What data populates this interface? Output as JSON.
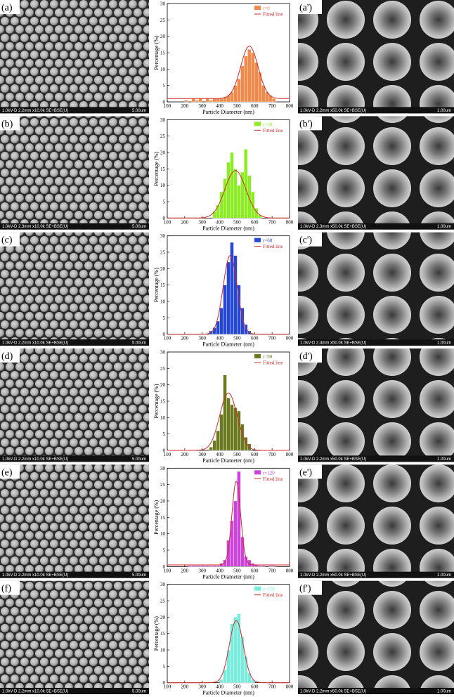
{
  "panels": [
    {
      "label": "(a)",
      "info": "1.0kV-D 2.2mm x10.0k SE+BSE(U)",
      "scale": "5.00um"
    },
    {
      "label": "(b)",
      "info": "1.0kV-D 2.3mm x10.0k SE+BSE(U)",
      "scale": "5.00um"
    },
    {
      "label": "(c)",
      "info": "1.0kV-D 2.2mm x10.0k SE+BSE(U)",
      "scale": "5.00um"
    },
    {
      "label": "(d)",
      "info": "1.0kV-D 2.2mm x10.0k SE+BSE(U)",
      "scale": "5.00um"
    },
    {
      "label": "(e)",
      "info": "1.0kV-D 2.2mm x10.0k SE+BSE(U)",
      "scale": "5.00um"
    },
    {
      "label": "(f)",
      "info": "1.0kV-D 2.2mm x10.0k SE+BSE(U)",
      "scale": "5.00um"
    }
  ],
  "zoom_panels": [
    {
      "label": "(a')",
      "info": "1.0kV-D 2.2mm x50.0k SE+BSE(U)",
      "scale": "1.00um"
    },
    {
      "label": "(b')",
      "info": "1.0kV-D 2.3mm x50.0k SE+BSE(U)",
      "scale": "1.00um"
    },
    {
      "label": "(c')",
      "info": "1.0kV-D 2.4mm x50.0k SE+BSE(U)",
      "scale": "1.00um"
    },
    {
      "label": "(d')",
      "info": "1.0kV-D 2.2mm x50.0k SE+BSE(U)",
      "scale": "1.00um"
    },
    {
      "label": "(e')",
      "info": "1.0kV-D 2.2mm x50.0k SE+BSE(U)",
      "scale": "1.00um"
    },
    {
      "label": "(f')",
      "info": "1.0kV-D 2.2mm x50.0k SE+BSE(U)",
      "scale": "1.00um"
    }
  ],
  "chart_data": [
    {
      "type": "histogram",
      "xlabel": "Particle Diameter (nm)",
      "ylabel": "Percentage (%)",
      "xlim": [
        100,
        800
      ],
      "xticks": [
        100,
        200,
        300,
        400,
        500,
        600,
        700,
        800
      ],
      "ylim": [
        0,
        30
      ],
      "yticks": [
        0,
        5,
        10,
        15,
        20,
        25,
        30
      ],
      "bins": [
        200,
        220,
        240,
        260,
        280,
        300,
        320,
        340,
        360,
        380,
        400,
        420,
        440,
        460,
        480,
        500,
        520,
        540,
        560,
        580,
        600,
        620,
        640,
        660,
        680,
        700,
        720
      ],
      "series": [
        {
          "name": "r=0",
          "color": "#f08a4b",
          "values": [
            0.5,
            0,
            1,
            0.5,
            1,
            0,
            1,
            0.5,
            1,
            1,
            1,
            1.5,
            2,
            3,
            5,
            7,
            11,
            14,
            16,
            15,
            12,
            9,
            5,
            3,
            2,
            1
          ]
        }
      ],
      "fit": {
        "name": "Fitted line",
        "color": "#d42a2a",
        "center": 570,
        "sigma": 50,
        "peak": 16,
        "offset": 1
      }
    },
    {
      "type": "histogram",
      "xlabel": "Particle Diameter (nm)",
      "ylabel": "Percentage (%)",
      "xlim": [
        100,
        800
      ],
      "xticks": [
        100,
        200,
        300,
        400,
        500,
        600,
        700,
        800
      ],
      "ylim": [
        0,
        30
      ],
      "yticks": [
        0,
        5,
        10,
        15,
        20,
        25,
        30
      ],
      "bins": [
        360,
        380,
        400,
        420,
        440,
        460,
        480,
        500,
        520,
        540,
        560,
        580,
        600,
        620,
        640
      ],
      "series": [
        {
          "name": "r=30",
          "color": "#8aee22",
          "values": [
            2,
            4,
            8,
            12,
            17,
            20,
            15,
            10,
            14,
            21,
            13,
            8,
            3,
            1
          ]
        }
      ],
      "fit": {
        "name": "Fitted line",
        "color": "#d42a2a",
        "center": 490,
        "sigma": 60,
        "peak": 14.5,
        "offset": 0
      }
    },
    {
      "type": "histogram",
      "xlabel": "Particle Diameter (nm)",
      "ylabel": "Percentage (%)",
      "xlim": [
        100,
        800
      ],
      "xticks": [
        100,
        200,
        300,
        400,
        500,
        600,
        700,
        800
      ],
      "ylim": [
        0,
        30
      ],
      "yticks": [
        0,
        5,
        10,
        15,
        20,
        25,
        30
      ],
      "bins": [
        340,
        360,
        380,
        400,
        420,
        440,
        460,
        480,
        500,
        520,
        540,
        560,
        580
      ],
      "series": [
        {
          "name": "r=60",
          "color": "#2447d8",
          "values": [
            1,
            2,
            4,
            8,
            15,
            22,
            28,
            24,
            15,
            8,
            3,
            1
          ]
        }
      ],
      "fit": {
        "name": "Fitted line",
        "color": "#d42a2a",
        "center": 460,
        "sigma": 40,
        "peak": 24,
        "offset": 0
      }
    },
    {
      "type": "histogram",
      "xlabel": "Particle Diameter (nm)",
      "ylabel": "Percentage (%)",
      "xlim": [
        100,
        800
      ],
      "xticks": [
        100,
        200,
        300,
        400,
        500,
        600,
        700,
        800
      ],
      "ylim": [
        0,
        30
      ],
      "yticks": [
        0,
        5,
        10,
        15,
        20,
        25,
        30
      ],
      "bins": [
        340,
        360,
        380,
        400,
        420,
        440,
        460,
        480,
        500,
        520,
        540,
        560,
        580
      ],
      "series": [
        {
          "name": "r=90",
          "color": "#6b7a1f",
          "values": [
            1,
            3,
            6,
            11,
            23,
            16,
            14,
            13,
            12,
            8,
            4,
            2
          ]
        }
      ],
      "fit": {
        "name": "Fitted line",
        "color": "#d42a2a",
        "center": 450,
        "sigma": 50,
        "peak": 17.5,
        "offset": 0
      }
    },
    {
      "type": "histogram",
      "xlabel": "Particle Diameter (nm)",
      "ylabel": "Percentage (%)",
      "xlim": [
        100,
        800
      ],
      "xticks": [
        100,
        200,
        300,
        400,
        500,
        600,
        700,
        800
      ],
      "ylim": [
        0,
        30
      ],
      "yticks": [
        0,
        5,
        10,
        15,
        20,
        25,
        30
      ],
      "bins": [
        220,
        240,
        260,
        280,
        300,
        320,
        340,
        360,
        380,
        400,
        420,
        440,
        460,
        480,
        500,
        520,
        540,
        560,
        580,
        600,
        620,
        640,
        660,
        680,
        700,
        720
      ],
      "series": [
        {
          "name": "r=120",
          "color": "#cc44dd",
          "values": [
            0.3,
            0.3,
            0.3,
            0.3,
            0.3,
            0.3,
            0.3,
            0.3,
            0.3,
            1,
            2,
            8,
            14,
            20,
            29,
            9,
            3,
            2,
            1,
            0.5,
            0.3,
            0.3,
            0,
            0.3,
            0.3
          ]
        }
      ],
      "fit": {
        "name": "Fitted line",
        "color": "#d42a2a",
        "center": 495,
        "sigma": 25,
        "peak": 25.5,
        "offset": 0.5
      }
    },
    {
      "type": "histogram",
      "xlabel": "Particle Diameter (nm)",
      "ylabel": "Percentage (%)",
      "xlim": [
        100,
        800
      ],
      "xticks": [
        100,
        200,
        300,
        400,
        500,
        600,
        700,
        800
      ],
      "ylim": [
        0,
        30
      ],
      "yticks": [
        0,
        5,
        10,
        15,
        20,
        25,
        30
      ],
      "bins": [
        400,
        420,
        440,
        460,
        480,
        500,
        520,
        540,
        560,
        580,
        600
      ],
      "series": [
        {
          "name": "r=150",
          "color": "#77eedd",
          "values": [
            1,
            4,
            10,
            18,
            20,
            21,
            14,
            8,
            3,
            1
          ]
        }
      ],
      "fit": {
        "name": "Fitted line",
        "color": "#d42a2a",
        "center": 495,
        "sigma": 40,
        "peak": 19,
        "offset": 0
      }
    }
  ]
}
